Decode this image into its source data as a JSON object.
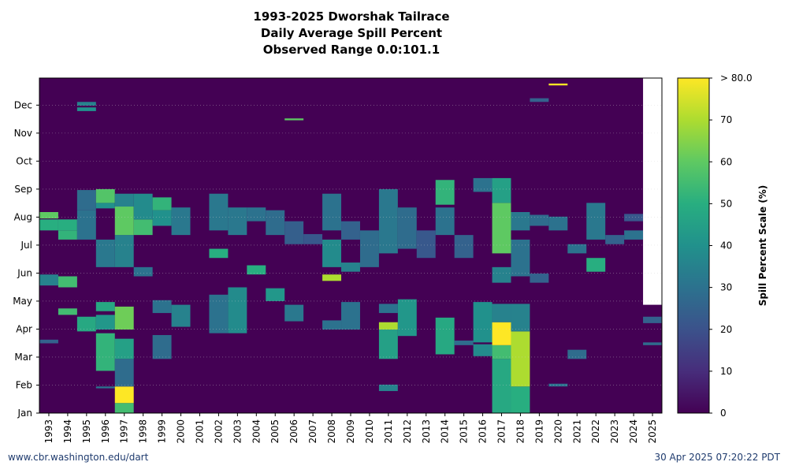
{
  "title": {
    "line1": "1993-2025 Dworshak Tailrace",
    "line2": "Daily Average Spill Percent",
    "line3": "Observed Range 0.0:101.1"
  },
  "footer": {
    "site": "www.cbr.washington.edu/dart",
    "timestamp": "30 Apr 2025 07:20:22 PDT"
  },
  "chart_data": {
    "type": "heatmap",
    "title": "1993-2025 Dworshak Tailrace Daily Average Spill Percent",
    "x_categories": [
      "1993",
      "1994",
      "1995",
      "1996",
      "1997",
      "1998",
      "1999",
      "2000",
      "2001",
      "2002",
      "2003",
      "2004",
      "2005",
      "2006",
      "2007",
      "2008",
      "2009",
      "2010",
      "2011",
      "2012",
      "2013",
      "2014",
      "2015",
      "2016",
      "2017",
      "2018",
      "2019",
      "2020",
      "2021",
      "2022",
      "2023",
      "2024",
      "2025"
    ],
    "y_ticks": [
      "Jan",
      "Feb",
      "Mar",
      "Apr",
      "May",
      "Jun",
      "Jul",
      "Aug",
      "Sep",
      "Oct",
      "Nov",
      "Dec"
    ],
    "y_range_day_of_year": [
      1,
      366
    ],
    "colorbar": {
      "label": "Spill Percent Scale (%)",
      "range": [
        0,
        80
      ],
      "ticks": [
        "0",
        "10",
        "20",
        "30",
        "40",
        "50",
        "60",
        "70",
        "> 80.0"
      ],
      "colormap": "viridis"
    },
    "no_data": {
      "year": "2025",
      "from_day": 119
    },
    "background_value": 0,
    "blocks": [
      {
        "year": "1993",
        "from": 77,
        "to": 81,
        "value": 25
      },
      {
        "year": "1993",
        "from": 140,
        "to": 152,
        "value": 35
      },
      {
        "year": "1993",
        "from": 200,
        "to": 212,
        "value": 50
      },
      {
        "year": "1993",
        "from": 213,
        "to": 220,
        "value": 60
      },
      {
        "year": "1994",
        "from": 108,
        "to": 115,
        "value": 55
      },
      {
        "year": "1994",
        "from": 138,
        "to": 150,
        "value": 55
      },
      {
        "year": "1994",
        "from": 190,
        "to": 200,
        "value": 52
      },
      {
        "year": "1994",
        "from": 200,
        "to": 212,
        "value": 50
      },
      {
        "year": "1995",
        "from": 90,
        "to": 106,
        "value": 48
      },
      {
        "year": "1995",
        "from": 190,
        "to": 222,
        "value": 30
      },
      {
        "year": "1995",
        "from": 222,
        "to": 244,
        "value": 28
      },
      {
        "year": "1995",
        "from": 330,
        "to": 334,
        "value": 40
      },
      {
        "year": "1995",
        "from": 336,
        "to": 340,
        "value": 35
      },
      {
        "year": "1996",
        "from": 28,
        "to": 30,
        "value": 30
      },
      {
        "year": "1996",
        "from": 47,
        "to": 88,
        "value": 52
      },
      {
        "year": "1996",
        "from": 92,
        "to": 108,
        "value": 42
      },
      {
        "year": "1996",
        "from": 112,
        "to": 122,
        "value": 48
      },
      {
        "year": "1996",
        "from": 160,
        "to": 190,
        "value": 32
      },
      {
        "year": "1996",
        "from": 224,
        "to": 230,
        "value": 40
      },
      {
        "year": "1996",
        "from": 230,
        "to": 245,
        "value": 58
      },
      {
        "year": "1997",
        "from": 1,
        "to": 12,
        "value": 55
      },
      {
        "year": "1997",
        "from": 12,
        "to": 30,
        "value": 80
      },
      {
        "year": "1997",
        "from": 30,
        "to": 60,
        "value": 28
      },
      {
        "year": "1997",
        "from": 60,
        "to": 82,
        "value": 45
      },
      {
        "year": "1997",
        "from": 92,
        "to": 117,
        "value": 62
      },
      {
        "year": "1997",
        "from": 160,
        "to": 195,
        "value": 35
      },
      {
        "year": "1997",
        "from": 195,
        "to": 226,
        "value": 60
      },
      {
        "year": "1997",
        "from": 226,
        "to": 240,
        "value": 35
      },
      {
        "year": "1998",
        "from": 150,
        "to": 160,
        "value": 30
      },
      {
        "year": "1998",
        "from": 195,
        "to": 212,
        "value": 55
      },
      {
        "year": "1998",
        "from": 212,
        "to": 240,
        "value": 38
      },
      {
        "year": "1999",
        "from": 60,
        "to": 86,
        "value": 28
      },
      {
        "year": "1999",
        "from": 110,
        "to": 124,
        "value": 30
      },
      {
        "year": "1999",
        "from": 205,
        "to": 222,
        "value": 40
      },
      {
        "year": "1999",
        "from": 222,
        "to": 236,
        "value": 52
      },
      {
        "year": "2000",
        "from": 95,
        "to": 119,
        "value": 35
      },
      {
        "year": "2000",
        "from": 195,
        "to": 225,
        "value": 32
      },
      {
        "year": "2001",
        "from": 1,
        "to": 1,
        "value": 0
      },
      {
        "year": "2002",
        "from": 88,
        "to": 130,
        "value": 30
      },
      {
        "year": "2002",
        "from": 170,
        "to": 180,
        "value": 50
      },
      {
        "year": "2002",
        "from": 200,
        "to": 240,
        "value": 32
      },
      {
        "year": "2003",
        "from": 88,
        "to": 138,
        "value": 38
      },
      {
        "year": "2003",
        "from": 195,
        "to": 225,
        "value": 32
      },
      {
        "year": "2004",
        "from": 152,
        "to": 162,
        "value": 50
      },
      {
        "year": "2004",
        "from": 210,
        "to": 225,
        "value": 30
      },
      {
        "year": "2005",
        "from": 123,
        "to": 137,
        "value": 42
      },
      {
        "year": "2005",
        "from": 195,
        "to": 222,
        "value": 28
      },
      {
        "year": "2006",
        "from": 101,
        "to": 119,
        "value": 32
      },
      {
        "year": "2006",
        "from": 185,
        "to": 210,
        "value": 24
      },
      {
        "year": "2006",
        "from": 320,
        "to": 322,
        "value": 60
      },
      {
        "year": "2007",
        "from": 185,
        "to": 196,
        "value": 22
      },
      {
        "year": "2008",
        "from": 92,
        "to": 102,
        "value": 30
      },
      {
        "year": "2008",
        "from": 145,
        "to": 152,
        "value": 70
      },
      {
        "year": "2008",
        "from": 160,
        "to": 190,
        "value": 38
      },
      {
        "year": "2008",
        "from": 200,
        "to": 240,
        "value": 30
      },
      {
        "year": "2009",
        "from": 92,
        "to": 122,
        "value": 30
      },
      {
        "year": "2009",
        "from": 155,
        "to": 165,
        "value": 35
      },
      {
        "year": "2009",
        "from": 190,
        "to": 210,
        "value": 25
      },
      {
        "year": "2010",
        "from": 160,
        "to": 200,
        "value": 28
      },
      {
        "year": "2011",
        "from": 25,
        "to": 32,
        "value": 35
      },
      {
        "year": "2011",
        "from": 60,
        "to": 92,
        "value": 45
      },
      {
        "year": "2011",
        "from": 92,
        "to": 100,
        "value": 70
      },
      {
        "year": "2011",
        "from": 110,
        "to": 120,
        "value": 30
      },
      {
        "year": "2011",
        "from": 175,
        "to": 245,
        "value": 32
      },
      {
        "year": "2012",
        "from": 85,
        "to": 125,
        "value": 42
      },
      {
        "year": "2012",
        "from": 180,
        "to": 225,
        "value": 28
      },
      {
        "year": "2013",
        "from": 170,
        "to": 200,
        "value": 22
      },
      {
        "year": "2014",
        "from": 65,
        "to": 105,
        "value": 48
      },
      {
        "year": "2014",
        "from": 195,
        "to": 225,
        "value": 30
      },
      {
        "year": "2014",
        "from": 228,
        "to": 255,
        "value": 52
      },
      {
        "year": "2015",
        "from": 75,
        "to": 80,
        "value": 28
      },
      {
        "year": "2015",
        "from": 170,
        "to": 195,
        "value": 25
      },
      {
        "year": "2016",
        "from": 63,
        "to": 76,
        "value": 38
      },
      {
        "year": "2016",
        "from": 78,
        "to": 122,
        "value": 40
      },
      {
        "year": "2016",
        "from": 242,
        "to": 257,
        "value": 30
      },
      {
        "year": "2017",
        "from": 1,
        "to": 60,
        "value": 48
      },
      {
        "year": "2017",
        "from": 60,
        "to": 75,
        "value": 55
      },
      {
        "year": "2017",
        "from": 75,
        "to": 100,
        "value": 85
      },
      {
        "year": "2017",
        "from": 100,
        "to": 120,
        "value": 35
      },
      {
        "year": "2017",
        "from": 143,
        "to": 160,
        "value": 35
      },
      {
        "year": "2017",
        "from": 175,
        "to": 230,
        "value": 60
      },
      {
        "year": "2017",
        "from": 230,
        "to": 257,
        "value": 45
      },
      {
        "year": "2018",
        "from": 1,
        "to": 30,
        "value": 50
      },
      {
        "year": "2018",
        "from": 30,
        "to": 90,
        "value": 70
      },
      {
        "year": "2018",
        "from": 90,
        "to": 120,
        "value": 35
      },
      {
        "year": "2018",
        "from": 150,
        "to": 190,
        "value": 30
      },
      {
        "year": "2018",
        "from": 200,
        "to": 220,
        "value": 32
      },
      {
        "year": "2019",
        "from": 143,
        "to": 153,
        "value": 25
      },
      {
        "year": "2019",
        "from": 205,
        "to": 217,
        "value": 28
      },
      {
        "year": "2019",
        "from": 340,
        "to": 344,
        "value": 25
      },
      {
        "year": "2020",
        "from": 30,
        "to": 33,
        "value": 30
      },
      {
        "year": "2020",
        "from": 200,
        "to": 215,
        "value": 30
      },
      {
        "year": "2020",
        "from": 358,
        "to": 360,
        "value": 95
      },
      {
        "year": "2021",
        "from": 60,
        "to": 70,
        "value": 28
      },
      {
        "year": "2021",
        "from": 175,
        "to": 185,
        "value": 30
      },
      {
        "year": "2022",
        "from": 155,
        "to": 170,
        "value": 50
      },
      {
        "year": "2022",
        "from": 190,
        "to": 230,
        "value": 32
      },
      {
        "year": "2023",
        "from": 185,
        "to": 195,
        "value": 25
      },
      {
        "year": "2024",
        "from": 190,
        "to": 200,
        "value": 30
      },
      {
        "year": "2024",
        "from": 210,
        "to": 218,
        "value": 22
      },
      {
        "year": "2025",
        "from": 75,
        "to": 78,
        "value": 28
      },
      {
        "year": "2025",
        "from": 99,
        "to": 106,
        "value": 25
      }
    ]
  }
}
